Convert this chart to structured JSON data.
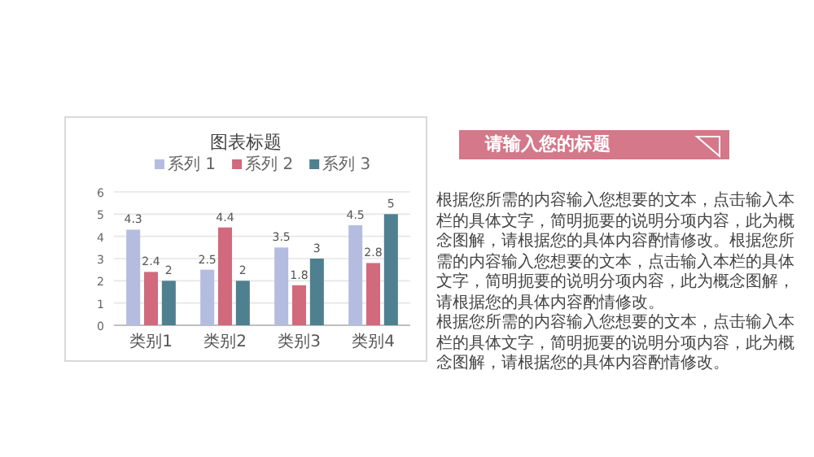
{
  "chart_data": {
    "type": "bar",
    "title": "图表标题",
    "categories": [
      "类别1",
      "类别2",
      "类别3",
      "类别4"
    ],
    "series": [
      {
        "name": "系列 1",
        "color": "#b4bde0",
        "values": [
          4.3,
          2.5,
          3.5,
          4.5
        ]
      },
      {
        "name": "系列 2",
        "color": "#d06a7c",
        "values": [
          2.4,
          4.4,
          1.8,
          2.8
        ]
      },
      {
        "name": "系列 3",
        "color": "#4e8090",
        "values": [
          2,
          2,
          3,
          5
        ]
      }
    ],
    "ylim": [
      0,
      6
    ],
    "yticks": [
      0,
      1,
      2,
      3,
      4,
      5,
      6
    ],
    "grid": "y",
    "legend": "top",
    "data_labels": true,
    "annotations": [
      "请输入您的标题",
      "根据您所需的内容输入您想要的文本，点击输入本栏的具体文字，简明扼要的说明分项内容，此为概念图解，请根据您的具体内容酌情修改。根据您所需的内容输入您想要的文本，点击输入本栏的具体文字，简明扼要的说明分项内容，此为概念图解，请根据您的具体内容酌情修改。",
      "根据您所需的内容输入您想要的文本，点击输入本栏的具体文字，简明扼要的说明分项内容，此为概念图解，请根据您的具体内容酌情修改。"
    ]
  }
}
